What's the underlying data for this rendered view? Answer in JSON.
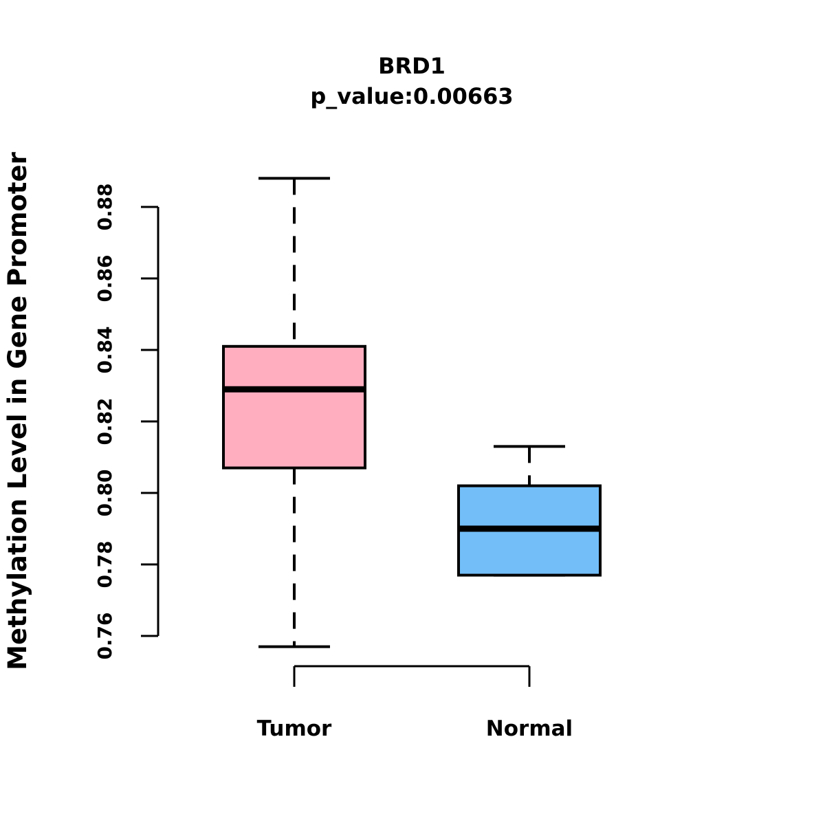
{
  "figure": {
    "background_color": "#FFFFFF",
    "stroke_color": "#000000"
  },
  "chart_data": {
    "type": "boxplot",
    "title": "BRD1",
    "subtitle": "p_value:0.00663",
    "p_value": 0.00663,
    "ylabel": "Methylation Level in Gene Promoter",
    "xlabel": "",
    "categories": [
      "Tumor",
      "Normal"
    ],
    "yticks": [
      0.76,
      0.78,
      0.8,
      0.82,
      0.84,
      0.86,
      0.88
    ],
    "ytick_decimals": 2,
    "ylim": [
      0.755,
      0.89
    ],
    "grid": false,
    "legend_position": "none",
    "series": [
      {
        "name": "Tumor",
        "fill_color": "#FFAEC0",
        "stats": {
          "whisker_low": 0.757,
          "q1": 0.807,
          "median": 0.829,
          "q3": 0.841,
          "whisker_high": 0.888
        }
      },
      {
        "name": "Normal",
        "fill_color": "#73BEF8",
        "stats": {
          "whisker_low": 0.777,
          "q1": 0.777,
          "median": 0.79,
          "q3": 0.802,
          "whisker_high": 0.813
        }
      }
    ]
  }
}
